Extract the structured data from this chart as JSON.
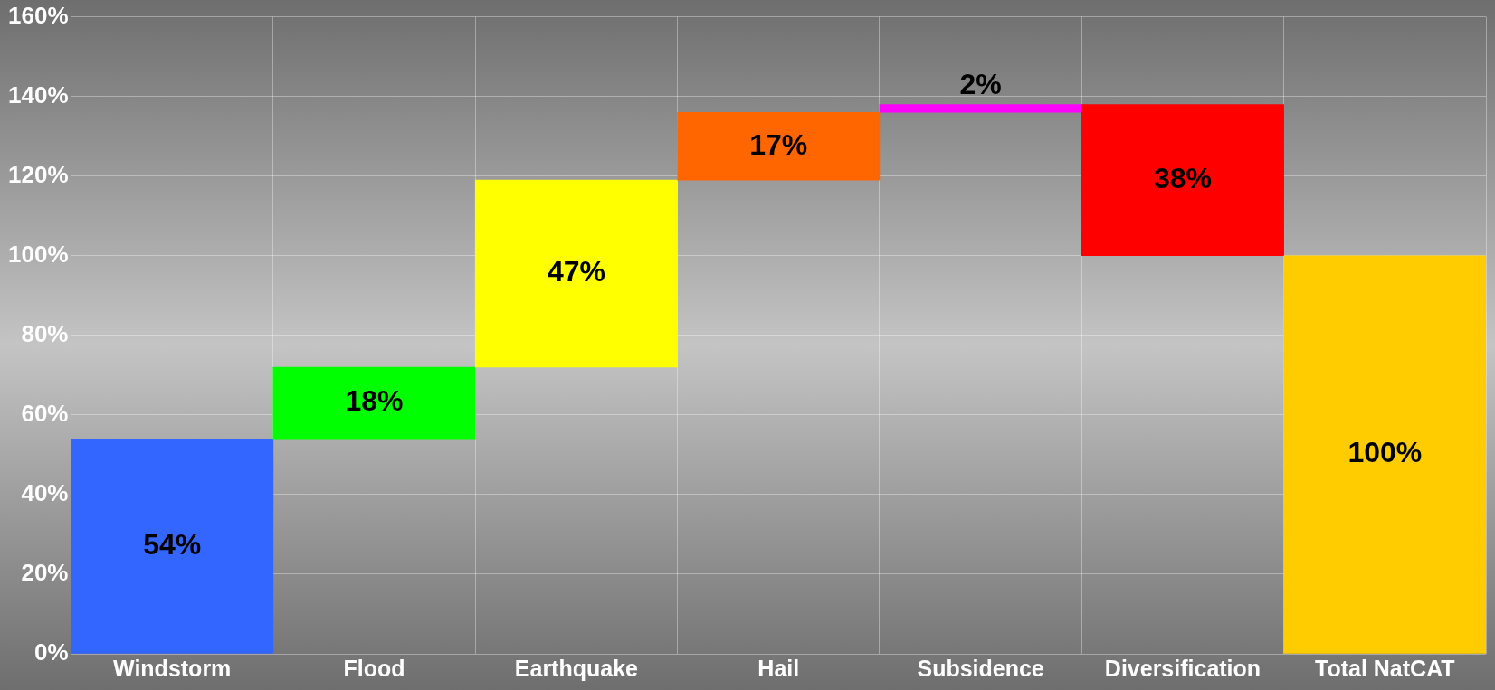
{
  "chart_data": {
    "type": "bar",
    "categories": [
      "Windstorm",
      "Flood",
      "Earthquake",
      "Hail",
      "Subsidence",
      "Diversification",
      "Total NatCAT"
    ],
    "values": [
      54,
      18,
      47,
      17,
      2,
      -38,
      100
    ],
    "base": [
      0,
      54,
      72,
      119,
      136,
      138,
      0
    ],
    "colors": [
      "#3366ff",
      "#00ff00",
      "#ffff00",
      "#ff6600",
      "#ff00ff",
      "#ff0000",
      "#ffcc00"
    ],
    "value_labels": [
      "54%",
      "18%",
      "47%",
      "17%",
      "2%",
      "38%",
      "100%"
    ],
    "ylim": [
      0,
      160
    ],
    "yticks": [
      {
        "value": 0,
        "label": "0%"
      },
      {
        "value": 20,
        "label": "20%"
      },
      {
        "value": 40,
        "label": "40%"
      },
      {
        "value": 60,
        "label": "60%"
      },
      {
        "value": 80,
        "label": "80%"
      },
      {
        "value": 100,
        "label": "100%"
      },
      {
        "value": 120,
        "label": "120%"
      },
      {
        "value": 140,
        "label": "140%"
      },
      {
        "value": 160,
        "label": "160%"
      }
    ],
    "grid": true,
    "legend": false
  }
}
